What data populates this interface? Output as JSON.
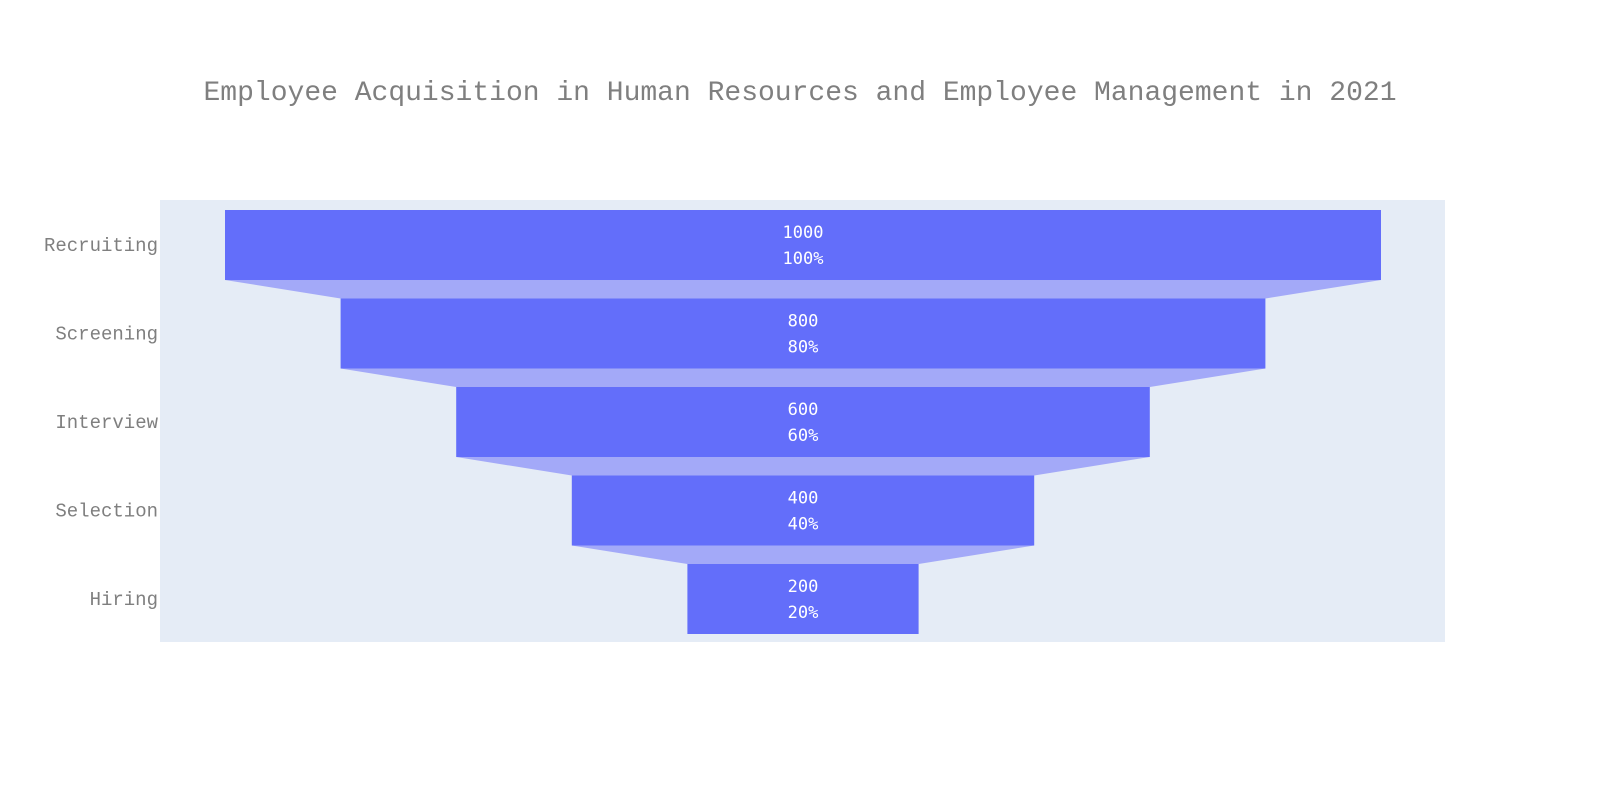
{
  "chart_data": {
    "type": "funnel",
    "title": "Employee Acquisition in Human Resources and Employee Management in 2021",
    "categories": [
      "Recruiting",
      "Screening",
      "Interview",
      "Selection",
      "Hiring"
    ],
    "values": [
      1000,
      800,
      600,
      400,
      200
    ],
    "percent_labels": [
      "100%",
      "80%",
      "60%",
      "40%",
      "20%"
    ],
    "colors": {
      "bar": "#636efa",
      "connector": "#a3a9f8",
      "plot_background": "#e5ecf6",
      "text": "#7f7f7f",
      "bar_text": "#ffffff"
    },
    "grid": false,
    "legend": "none"
  }
}
